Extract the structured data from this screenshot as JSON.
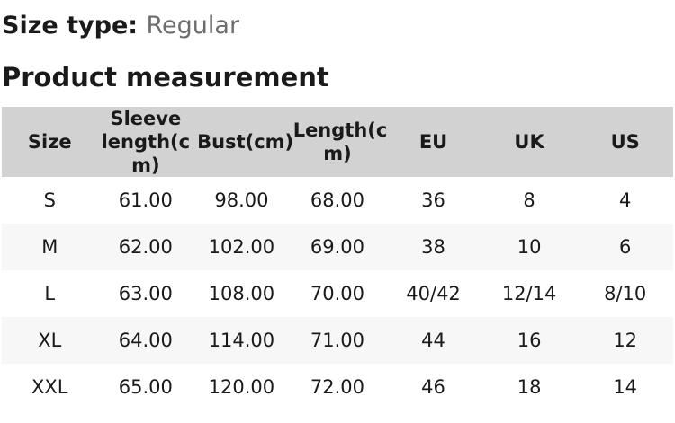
{
  "page": {
    "size_type_label": "Size type:",
    "size_type_value": "Regular",
    "section_title": "Product measurement"
  },
  "measurement_table": {
    "columns": [
      {
        "label": "Size",
        "lines": [
          "Size"
        ]
      },
      {
        "label": "Sleeve length(cm)",
        "lines": [
          "Sleeve",
          "length(c",
          "m)"
        ]
      },
      {
        "label": "Bust(cm)",
        "lines": [
          "Bust(cm)"
        ]
      },
      {
        "label": "Length(cm)",
        "lines": [
          "Length(c",
          "m)"
        ]
      },
      {
        "label": "EU",
        "lines": [
          "EU"
        ]
      },
      {
        "label": "UK",
        "lines": [
          "UK"
        ]
      },
      {
        "label": "US",
        "lines": [
          "US"
        ]
      }
    ],
    "rows": [
      [
        "S",
        "61.00",
        "98.00",
        "68.00",
        "36",
        "8",
        "4"
      ],
      [
        "M",
        "62.00",
        "102.00",
        "69.00",
        "38",
        "10",
        "6"
      ],
      [
        "L",
        "63.00",
        "108.00",
        "70.00",
        "40/42",
        "12/14",
        "8/10"
      ],
      [
        "XL",
        "64.00",
        "114.00",
        "71.00",
        "44",
        "16",
        "12"
      ],
      [
        "XXL",
        "65.00",
        "120.00",
        "72.00",
        "46",
        "18",
        "14"
      ]
    ]
  },
  "colors": {
    "header_bg": "#d2d2d2",
    "row_alt_bg": "#f7f7f7",
    "text": "#1a1a1a",
    "muted_text": "#6d6d6d"
  }
}
